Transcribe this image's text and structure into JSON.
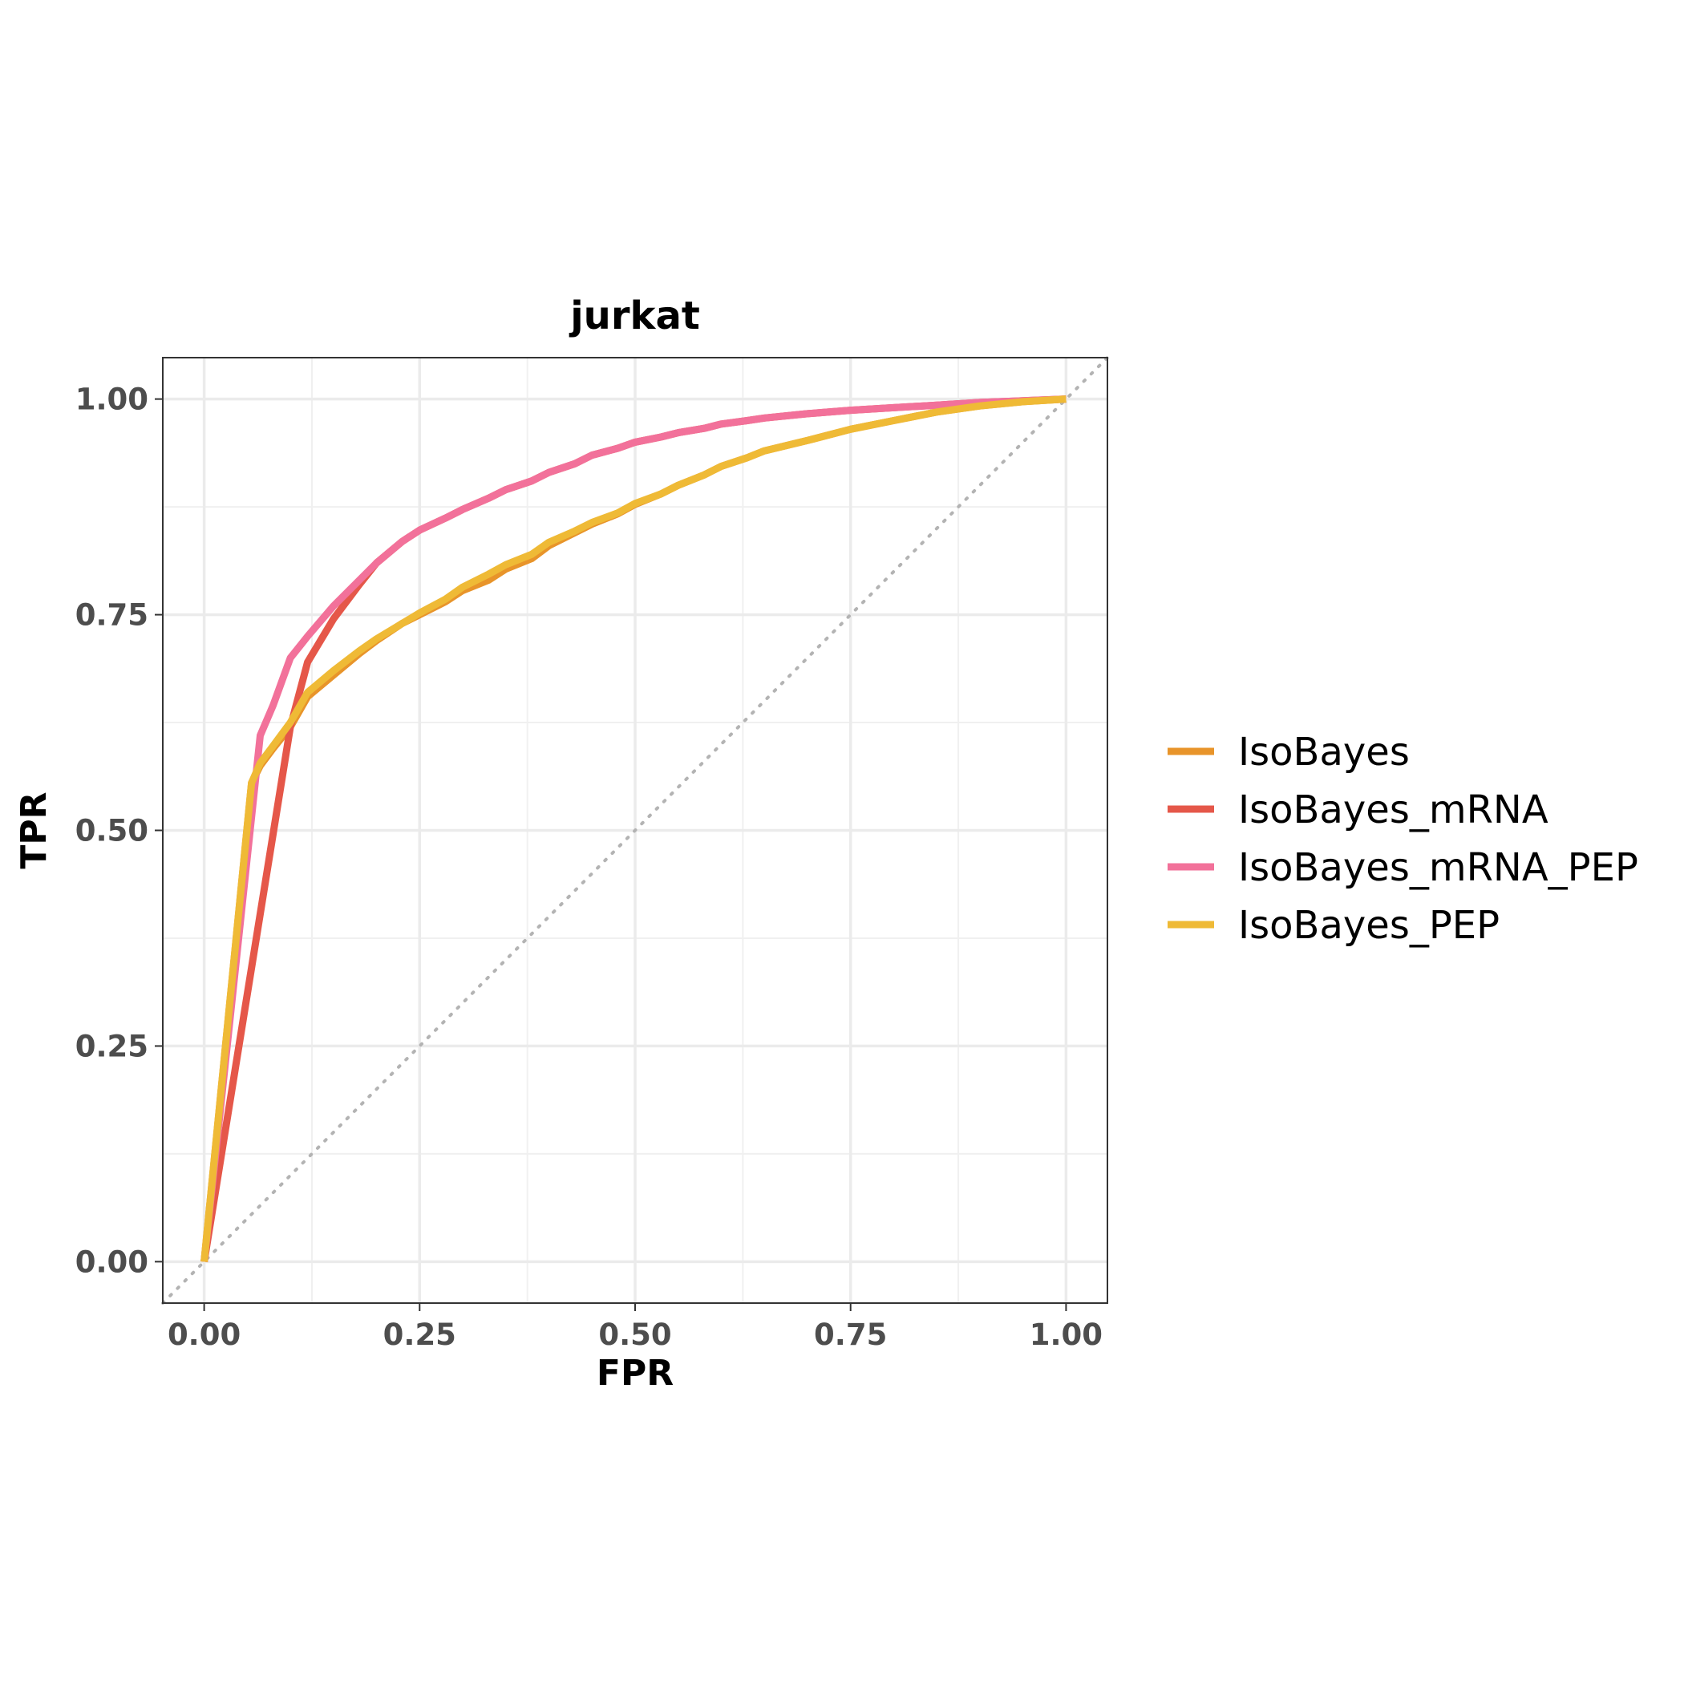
{
  "chart_data": {
    "type": "line",
    "title": "jurkat",
    "xlabel": "FPR",
    "ylabel": "TPR",
    "xlim": [
      -0.048,
      1.048
    ],
    "ylim": [
      -0.048,
      1.048
    ],
    "xticks": [
      "0.00",
      "0.25",
      "0.50",
      "0.75",
      "1.00"
    ],
    "yticks": [
      "0.00",
      "0.25",
      "0.50",
      "0.75",
      "1.00"
    ],
    "tick_values": [
      0,
      0.25,
      0.5,
      0.75,
      1.0
    ],
    "grid": true,
    "legend_position": "right",
    "reference_line": {
      "style": "dotted",
      "color": "#b3b3b3",
      "x": [
        -0.048,
        1.048
      ],
      "y": [
        -0.048,
        1.048
      ]
    },
    "series": [
      {
        "name": "IsoBayes",
        "color": "#E8942A",
        "x": [
          0,
          0.055,
          0.065,
          0.08,
          0.1,
          0.12,
          0.15,
          0.18,
          0.2,
          0.23,
          0.25,
          0.28,
          0.3,
          0.33,
          0.35,
          0.38,
          0.4,
          0.43,
          0.45,
          0.48,
          0.5,
          0.53,
          0.55,
          0.58,
          0.6,
          0.63,
          0.65,
          0.7,
          0.75,
          0.8,
          0.85,
          0.9,
          0.95,
          1.0
        ],
        "y": [
          0,
          0.555,
          0.575,
          0.595,
          0.62,
          0.655,
          0.68,
          0.705,
          0.72,
          0.74,
          0.75,
          0.765,
          0.778,
          0.79,
          0.803,
          0.815,
          0.83,
          0.845,
          0.855,
          0.867,
          0.878,
          0.89,
          0.9,
          0.912,
          0.922,
          0.932,
          0.94,
          0.952,
          0.965,
          0.975,
          0.985,
          0.992,
          0.997,
          1.0
        ]
      },
      {
        "name": "IsoBayes_mRNA",
        "color": "#E55749",
        "x": [
          0,
          0.1,
          0.12,
          0.15,
          0.18,
          0.2,
          0.23,
          0.25,
          0.28,
          0.3,
          0.33,
          0.35,
          0.38,
          0.4,
          0.43,
          0.45,
          0.48,
          0.5,
          0.53,
          0.55,
          0.58,
          0.6,
          0.63,
          0.65,
          0.7,
          0.75,
          0.8,
          0.85,
          0.9,
          0.95,
          1.0
        ],
        "y": [
          0,
          0.62,
          0.695,
          0.745,
          0.785,
          0.81,
          0.835,
          0.848,
          0.862,
          0.872,
          0.885,
          0.895,
          0.905,
          0.915,
          0.925,
          0.935,
          0.943,
          0.95,
          0.956,
          0.961,
          0.966,
          0.971,
          0.975,
          0.978,
          0.983,
          0.987,
          0.99,
          0.993,
          0.996,
          0.998,
          1.0
        ]
      },
      {
        "name": "IsoBayes_mRNA_PEP",
        "color": "#F2719A",
        "x": [
          0,
          0.065,
          0.08,
          0.1,
          0.12,
          0.15,
          0.18,
          0.2,
          0.23,
          0.25,
          0.28,
          0.3,
          0.33,
          0.35,
          0.38,
          0.4,
          0.43,
          0.45,
          0.48,
          0.5,
          0.53,
          0.55,
          0.58,
          0.6,
          0.63,
          0.65,
          0.7,
          0.75,
          0.8,
          0.85,
          0.9,
          0.95,
          1.0
        ],
        "y": [
          0,
          0.61,
          0.645,
          0.7,
          0.725,
          0.76,
          0.79,
          0.81,
          0.835,
          0.848,
          0.862,
          0.872,
          0.885,
          0.895,
          0.905,
          0.915,
          0.925,
          0.935,
          0.943,
          0.95,
          0.956,
          0.961,
          0.966,
          0.971,
          0.975,
          0.978,
          0.983,
          0.987,
          0.99,
          0.993,
          0.996,
          0.998,
          1.0
        ]
      },
      {
        "name": "IsoBayes_PEP",
        "color": "#EFBA36",
        "x": [
          0,
          0.055,
          0.065,
          0.08,
          0.1,
          0.12,
          0.15,
          0.18,
          0.2,
          0.23,
          0.25,
          0.28,
          0.3,
          0.33,
          0.35,
          0.38,
          0.4,
          0.43,
          0.45,
          0.48,
          0.5,
          0.53,
          0.55,
          0.58,
          0.6,
          0.63,
          0.65,
          0.7,
          0.75,
          0.8,
          0.85,
          0.9,
          0.95,
          1.0
        ],
        "y": [
          0,
          0.555,
          0.578,
          0.598,
          0.625,
          0.66,
          0.685,
          0.708,
          0.722,
          0.74,
          0.752,
          0.768,
          0.782,
          0.797,
          0.808,
          0.82,
          0.834,
          0.847,
          0.857,
          0.868,
          0.879,
          0.89,
          0.9,
          0.912,
          0.922,
          0.932,
          0.94,
          0.952,
          0.965,
          0.975,
          0.985,
          0.992,
          0.997,
          1.0
        ]
      }
    ]
  }
}
